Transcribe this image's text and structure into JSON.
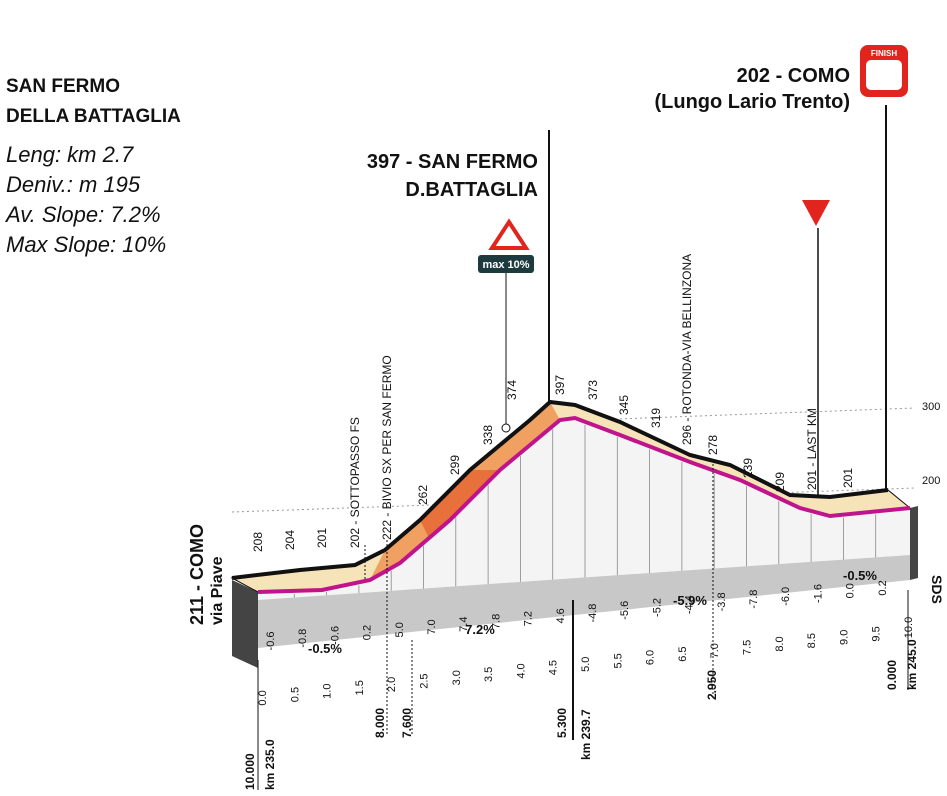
{
  "climb": {
    "name": [
      "SAN FERMO",
      "DELLA BATTAGLIA"
    ],
    "stats": [
      "Leng: km 2.7",
      "Deniv.: m 195",
      "Av. Slope: 7.2%",
      "Max Slope: 10%"
    ]
  },
  "summit": [
    "397 - SAN FERMO",
    "D.BATTAGLIA"
  ],
  "finish": {
    "name": [
      "202 - COMO",
      "(Lungo Lario Trento)"
    ],
    "badge": "FINISH"
  },
  "max_badge": "max 10%",
  "start": [
    "211 - COMO",
    "via Piave"
  ],
  "side_label": "SDS",
  "reference_altitudes": [
    "300",
    "200"
  ],
  "altitude_labels": [
    "208",
    "204",
    "201",
    "202 - SOTTOPASSO FS",
    "222 - BIVIO SX PER SAN FERMO",
    "262",
    "299",
    "338",
    "374",
    "397",
    "373",
    "345",
    "319",
    "296 - ROTONDA-VIA BELLINZONA",
    "278",
    "239",
    "209",
    "201 - LAST KM",
    "201"
  ],
  "slopes": [
    "-0.6",
    "-0.8",
    "-0.6",
    "0.2",
    "5.0",
    "7.0",
    "7.4",
    "7.8",
    "7.2",
    "4.6",
    "-4.8",
    "-5.6",
    "-5.2",
    "-4.4",
    "-3.8",
    "-7.8",
    "-6.0",
    "-1.6",
    "0.0",
    "0.2"
  ],
  "average_slopes": [
    "-0.5%",
    "7.2%",
    "-5.9%",
    "-0.5%"
  ],
  "km_ticks": [
    "0.0",
    "0.5",
    "1.0",
    "1.5",
    "2.0",
    "2.5",
    "3.0",
    "3.5",
    "4.0",
    "4.5",
    "5.0",
    "5.5",
    "6.0",
    "6.5",
    "7.0",
    "7.5",
    "8.0",
    "8.5",
    "9.0",
    "9.5",
    "10.0"
  ],
  "distance_labels": [
    "10.000",
    "km 235.0",
    "8.000",
    "7.600",
    "5.300",
    "km 239.7",
    "2.950",
    "0.000",
    "km 245.0"
  ]
}
